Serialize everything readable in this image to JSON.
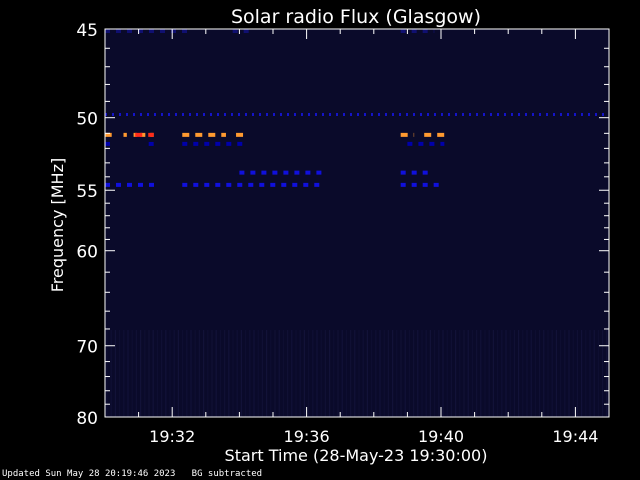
{
  "chart_data": {
    "type": "heatmap",
    "title": "Solar radio Flux (Glasgow)",
    "xlabel": "Start Time (28-May-23 19:30:00)",
    "ylabel": "Frequency [MHz]",
    "xlim_minutes": [
      0,
      15
    ],
    "ylim": [
      45,
      80
    ],
    "x_ticks": [
      {
        "minute": 2,
        "label": "19:32"
      },
      {
        "minute": 6,
        "label": "19:36"
      },
      {
        "minute": 10,
        "label": "19:40"
      },
      {
        "minute": 14,
        "label": "19:44"
      }
    ],
    "y_ticks": [
      {
        "value": 45,
        "label": "45"
      },
      {
        "value": 50,
        "label": "50"
      },
      {
        "value": 55,
        "label": "55"
      },
      {
        "value": 60,
        "label": "60"
      },
      {
        "value": 70,
        "label": "70"
      },
      {
        "value": 80,
        "label": "80"
      }
    ],
    "background_color": "#0a0a2a",
    "bands": [
      {
        "freq": 51.1,
        "segments": [
          [
            0.0,
            0.2
          ],
          [
            0.55,
            0.65
          ],
          [
            0.85,
            0.95
          ],
          [
            1.05,
            1.2
          ],
          [
            1.35,
            1.45
          ],
          [
            2.3,
            3.6
          ],
          [
            3.9,
            4.2
          ],
          [
            8.8,
            9.2
          ],
          [
            9.5,
            10.1
          ]
        ],
        "color": "#ff9a30"
      },
      {
        "freq": 51.1,
        "segments": [
          [
            0.9,
            1.45
          ]
        ],
        "color": "#ff2a1a"
      },
      {
        "freq": 49.8,
        "segments": [
          [
            0.0,
            15.0
          ]
        ],
        "color": "#1414c8"
      },
      {
        "freq": 51.7,
        "segments": [
          [
            0.0,
            0.2
          ],
          [
            1.3,
            1.5
          ],
          [
            2.3,
            4.2
          ],
          [
            9.0,
            10.1
          ]
        ],
        "color": "#0000aa"
      },
      {
        "freq": 54.6,
        "segments": [
          [
            0.0,
            1.5
          ],
          [
            2.3,
            6.5
          ],
          [
            8.8,
            10.1
          ]
        ],
        "color": "#1010dd"
      },
      {
        "freq": 53.7,
        "segments": [
          [
            4.0,
            6.5
          ],
          [
            8.8,
            9.7
          ]
        ],
        "color": "#1010dd"
      },
      {
        "freq": 45.1,
        "segments": [
          [
            0.0,
            2.5
          ],
          [
            3.8,
            4.3
          ],
          [
            8.8,
            9.8
          ]
        ],
        "color": "#101070"
      }
    ],
    "grid": false,
    "footer": "Updated Sun May 28 20:19:46 2023   BG subtracted"
  }
}
